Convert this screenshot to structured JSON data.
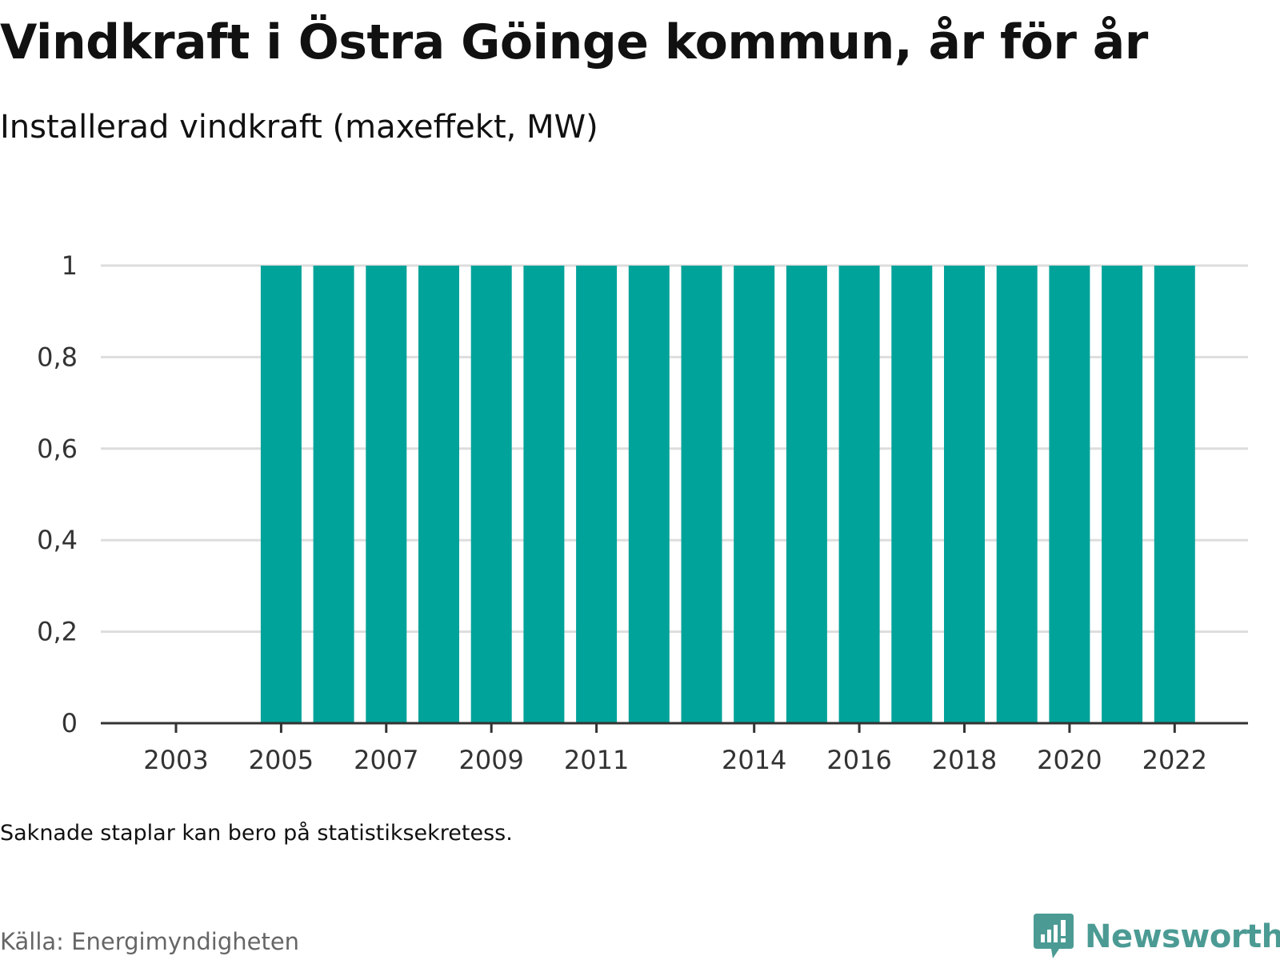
{
  "header": {
    "title": "Vindkraft i Östra Göinge kommun, år för år",
    "subtitle": "Installerad vindkraft (maxeffekt, MW)"
  },
  "footer": {
    "note": "Saknade staplar kan bero på statistiksekretess.",
    "source": "Källa: Energimyndigheten",
    "brand": "Newsworthy",
    "brand_icon": "bar-chart-speech-bubble-icon"
  },
  "colors": {
    "bar": "#00a39a",
    "grid": "#dddddd",
    "axis": "#333333",
    "brand": "#4b9b94"
  },
  "chart_data": {
    "type": "bar",
    "categories": [
      "2003",
      "2004",
      "2005",
      "2006",
      "2007",
      "2008",
      "2009",
      "2010",
      "2011",
      "2012",
      "2013",
      "2014",
      "2015",
      "2016",
      "2017",
      "2018",
      "2019",
      "2020",
      "2021",
      "2022"
    ],
    "values": [
      null,
      null,
      1,
      1,
      1,
      1,
      1,
      1,
      1,
      1,
      1,
      1,
      1,
      1,
      1,
      1,
      1,
      1,
      1,
      1
    ],
    "title": "Vindkraft i Östra Göinge kommun, år för år",
    "subtitle": "Installerad vindkraft (maxeffekt, MW)",
    "xlabel": "",
    "ylabel": "",
    "ylim": [
      0,
      1
    ],
    "yticks": [
      {
        "value": 0,
        "label": "0"
      },
      {
        "value": 0.2,
        "label": "0,2"
      },
      {
        "value": 0.4,
        "label": "0,4"
      },
      {
        "value": 0.6,
        "label": "0,6"
      },
      {
        "value": 0.8,
        "label": "0,8"
      },
      {
        "value": 1,
        "label": "1"
      }
    ],
    "xtick_labels": [
      "2003",
      "2005",
      "2007",
      "2009",
      "2011",
      "2014",
      "2016",
      "2018",
      "2020",
      "2022"
    ],
    "grid": true,
    "legend": "none"
  }
}
